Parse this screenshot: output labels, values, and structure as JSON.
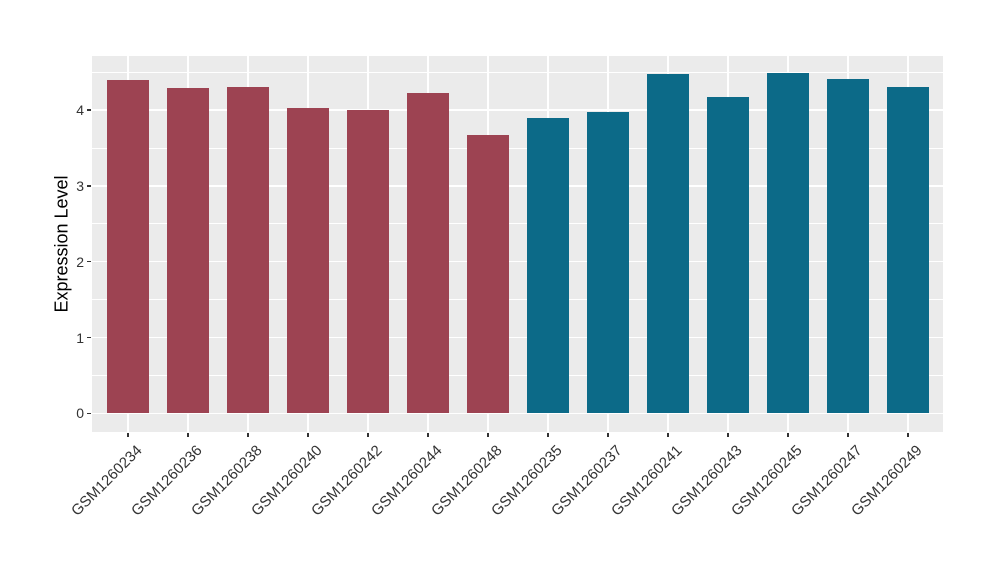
{
  "chart_data": {
    "type": "bar",
    "title": "",
    "xlabel": "",
    "ylabel": "Expression Level",
    "ylim": [
      -0.25,
      4.72
    ],
    "yticks": [
      0,
      1,
      2,
      3,
      4
    ],
    "minor_yticks": [
      0.5,
      1.5,
      2.5,
      3.5,
      4.5
    ],
    "grid": "major and minor horizontal white lines, major vertical white line at each category center",
    "legend_position": "none",
    "panel_background": "#EBEBEB",
    "gridline_color": "#FFFFFF",
    "axis_text_color": "#333333",
    "axis_title_color": "#000000",
    "palette": {
      "maroon": "#9D4352",
      "teal": "#0C6A88"
    },
    "categories": [
      "GSM1260234",
      "GSM1260236",
      "GSM1260238",
      "GSM1260240",
      "GSM1260242",
      "GSM1260244",
      "GSM1260248",
      "GSM1260235",
      "GSM1260237",
      "GSM1260241",
      "GSM1260243",
      "GSM1260245",
      "GSM1260247",
      "GSM1260249"
    ],
    "values": [
      4.4,
      4.29,
      4.31,
      4.03,
      4.0,
      4.23,
      3.67,
      3.9,
      3.97,
      4.47,
      4.17,
      4.49,
      4.41,
      4.31
    ],
    "bar_colors": [
      "#9D4352",
      "#9D4352",
      "#9D4352",
      "#9D4352",
      "#9D4352",
      "#9D4352",
      "#9D4352",
      "#0C6A88",
      "#0C6A88",
      "#0C6A88",
      "#0C6A88",
      "#0C6A88",
      "#0C6A88",
      "#0C6A88"
    ]
  }
}
